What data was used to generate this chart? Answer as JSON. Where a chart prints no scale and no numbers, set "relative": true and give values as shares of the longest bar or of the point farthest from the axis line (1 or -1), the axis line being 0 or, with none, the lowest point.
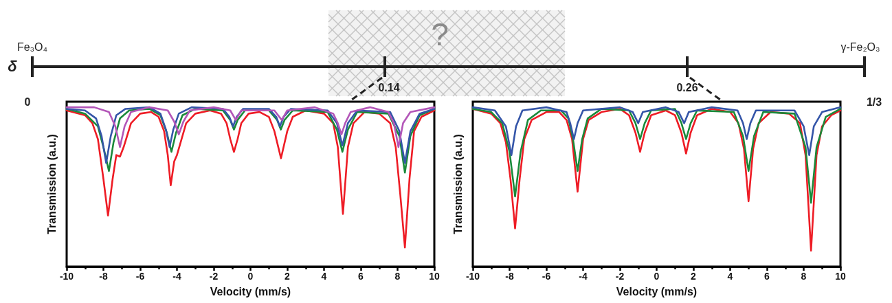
{
  "chart_data": [
    {
      "type": "other",
      "ylabel": "δ",
      "annotations": [
        "Fe₃O₄",
        "γ-Fe₂O₃",
        "0",
        "0.14",
        "0.26",
        "1/3",
        "?"
      ]
    },
    {
      "type": "line",
      "relative": true,
      "xlabel": "Velocity (mm/s)",
      "ylabel": "Transmission (a.u.)",
      "xlim": [
        -10,
        10
      ],
      "xticks": [
        -10,
        -8,
        -6,
        -4,
        -2,
        0,
        2,
        4,
        6,
        8,
        10
      ],
      "grid": false,
      "legend": false,
      "marker": "none",
      "line_style": "solid",
      "series": [
        {
          "color": "#ee1c25",
          "x": [
            -10,
            -9,
            -8.6,
            -8.3,
            -8.0,
            -7.75,
            -7.5,
            -7.3,
            -7.1,
            -6.9,
            -6.5,
            -6.0,
            -5.4,
            -5.0,
            -4.7,
            -4.5,
            -4.34,
            -4.15,
            -4.0,
            -3.8,
            -3.5,
            -3.0,
            -2.2,
            -1.6,
            -1.3,
            -1.1,
            -0.9,
            -0.7,
            -0.5,
            -0.1,
            0.5,
            1.0,
            1.3,
            1.66,
            2.0,
            2.3,
            3.0,
            4.0,
            4.5,
            4.75,
            5.03,
            5.3,
            5.6,
            6.2,
            7.0,
            7.6,
            7.9,
            8.15,
            8.4,
            8.65,
            8.9,
            9.3,
            10
          ],
          "values": [
            0.98,
            0.95,
            0.9,
            0.8,
            0.55,
            0.32,
            0.55,
            0.7,
            0.69,
            0.75,
            0.9,
            0.96,
            0.97,
            0.94,
            0.85,
            0.7,
            0.51,
            0.66,
            0.7,
            0.78,
            0.9,
            0.96,
            0.98,
            0.96,
            0.9,
            0.8,
            0.72,
            0.8,
            0.9,
            0.96,
            0.97,
            0.94,
            0.85,
            0.68,
            0.85,
            0.94,
            0.98,
            0.96,
            0.9,
            0.75,
            0.33,
            0.75,
            0.9,
            0.97,
            0.96,
            0.9,
            0.75,
            0.45,
            0.12,
            0.55,
            0.85,
            0.94,
            0.98
          ]
        },
        {
          "color": "#1a8a3a",
          "x": [
            -10,
            -9,
            -8.3,
            -8.0,
            -7.7,
            -7.45,
            -7.1,
            -6.6,
            -5.5,
            -4.9,
            -4.55,
            -4.3,
            -4.05,
            -3.7,
            -3.0,
            -1.5,
            -1.1,
            -0.9,
            -0.7,
            -0.3,
            1.0,
            1.45,
            1.65,
            1.85,
            2.3,
            4.2,
            4.7,
            5.0,
            5.3,
            5.8,
            7.5,
            8.1,
            8.4,
            8.7,
            9.2,
            10
          ],
          "values": [
            0.99,
            0.96,
            0.88,
            0.75,
            0.6,
            0.78,
            0.93,
            0.98,
            0.99,
            0.95,
            0.84,
            0.72,
            0.84,
            0.95,
            0.99,
            0.98,
            0.92,
            0.86,
            0.92,
            0.98,
            0.98,
            0.92,
            0.86,
            0.92,
            0.98,
            0.97,
            0.86,
            0.72,
            0.86,
            0.97,
            0.96,
            0.82,
            0.59,
            0.82,
            0.95,
            0.99
          ]
        },
        {
          "color": "#3455a8",
          "x": [
            -10,
            -9,
            -8.4,
            -8.1,
            -7.85,
            -7.6,
            -7.3,
            -6.8,
            -5.5,
            -4.9,
            -4.6,
            -4.4,
            -4.2,
            -3.9,
            -3.2,
            -1.5,
            -1.15,
            -0.95,
            -0.75,
            -0.4,
            1.0,
            1.4,
            1.6,
            1.8,
            2.2,
            4.2,
            4.7,
            5.0,
            5.3,
            5.8,
            7.6,
            8.1,
            8.4,
            8.7,
            9.2,
            10
          ],
          "values": [
            0.99,
            0.98,
            0.93,
            0.82,
            0.65,
            0.82,
            0.95,
            0.99,
            1.0,
            0.96,
            0.86,
            0.75,
            0.86,
            0.96,
            1.0,
            0.99,
            0.94,
            0.88,
            0.94,
            0.99,
            0.99,
            0.94,
            0.88,
            0.94,
            0.99,
            0.98,
            0.9,
            0.76,
            0.9,
            0.98,
            0.97,
            0.85,
            0.65,
            0.85,
            0.96,
            0.99
          ]
        },
        {
          "color": "#b356b8",
          "x": [
            -10,
            -8.5,
            -7.7,
            -7.35,
            -7.1,
            -6.85,
            -6.5,
            -5.5,
            -4.5,
            -4.15,
            -3.9,
            -3.65,
            -3.3,
            -2,
            -1.1,
            -0.8,
            -0.5,
            1.3,
            1.7,
            2.0,
            3.5,
            4.5,
            4.75,
            4.95,
            5.15,
            5.45,
            6.5,
            7.5,
            7.8,
            8.05,
            8.3,
            8.7,
            10
          ],
          "values": [
            1.0,
            1.0,
            0.97,
            0.88,
            0.75,
            0.88,
            0.97,
            1.0,
            0.98,
            0.91,
            0.83,
            0.91,
            0.98,
            1.0,
            0.98,
            0.92,
            0.98,
            0.98,
            0.92,
            0.98,
            1.0,
            0.96,
            0.9,
            0.83,
            0.9,
            0.97,
            1.0,
            0.97,
            0.9,
            0.75,
            0.9,
            0.97,
            1.0
          ]
        }
      ]
    },
    {
      "type": "line",
      "relative": true,
      "xlabel": "Velocity (mm/s)",
      "ylabel": "Transmission (a.u.)",
      "xlim": [
        -10,
        10
      ],
      "xticks": [
        -10,
        -8,
        -6,
        -4,
        -2,
        0,
        2,
        4,
        6,
        8,
        10
      ],
      "grid": false,
      "legend": false,
      "marker": "none",
      "line_style": "solid",
      "series": [
        {
          "color": "#ee1c25",
          "x": [
            -10,
            -9,
            -8.5,
            -8.2,
            -7.95,
            -7.7,
            -7.45,
            -7.2,
            -6.8,
            -6.0,
            -5.3,
            -4.9,
            -4.6,
            -4.3,
            -4.0,
            -3.7,
            -3.0,
            -2.0,
            -1.5,
            -1.15,
            -0.9,
            -0.65,
            -0.3,
            0.5,
            1.0,
            1.35,
            1.6,
            1.85,
            2.2,
            3.0,
            4.0,
            4.45,
            4.75,
            5.0,
            5.25,
            5.55,
            6.2,
            7.2,
            7.8,
            8.1,
            8.4,
            8.7,
            9.0,
            9.5,
            10
          ],
          "values": [
            0.99,
            0.96,
            0.9,
            0.78,
            0.55,
            0.24,
            0.55,
            0.8,
            0.92,
            0.97,
            0.97,
            0.92,
            0.8,
            0.47,
            0.8,
            0.92,
            0.97,
            0.99,
            0.95,
            0.84,
            0.72,
            0.84,
            0.95,
            0.98,
            0.95,
            0.84,
            0.71,
            0.84,
            0.95,
            0.99,
            0.97,
            0.9,
            0.74,
            0.41,
            0.74,
            0.9,
            0.97,
            0.96,
            0.9,
            0.7,
            0.1,
            0.7,
            0.88,
            0.95,
            0.98
          ]
        },
        {
          "color": "#1a8a3a",
          "x": [
            -10,
            -9,
            -8.4,
            -8.0,
            -7.7,
            -7.4,
            -7.0,
            -6.3,
            -5.2,
            -4.8,
            -4.55,
            -4.3,
            -4.05,
            -3.75,
            -3.0,
            -1.5,
            -1.15,
            -0.9,
            -0.65,
            -0.3,
            1.0,
            1.35,
            1.6,
            1.85,
            2.2,
            4.2,
            4.7,
            5.0,
            5.3,
            5.8,
            7.5,
            8.1,
            8.4,
            8.7,
            9.2,
            10
          ],
          "values": [
            0.99,
            0.97,
            0.9,
            0.72,
            0.44,
            0.72,
            0.92,
            0.98,
            0.98,
            0.93,
            0.8,
            0.6,
            0.8,
            0.93,
            0.99,
            0.98,
            0.9,
            0.8,
            0.9,
            0.98,
            0.99,
            0.9,
            0.8,
            0.9,
            0.98,
            0.97,
            0.82,
            0.6,
            0.82,
            0.97,
            0.96,
            0.75,
            0.4,
            0.75,
            0.94,
            0.99
          ]
        },
        {
          "color": "#3455a8",
          "x": [
            -10,
            -8.8,
            -8.2,
            -7.9,
            -7.65,
            -7.3,
            -6,
            -4.9,
            -4.7,
            -4.5,
            -4.3,
            -4.0,
            -2.0,
            -1.3,
            -1.0,
            -0.75,
            0.5,
            1.2,
            1.5,
            1.75,
            3.0,
            4.4,
            4.7,
            4.9,
            5.1,
            5.4,
            7.5,
            8.0,
            8.3,
            8.55,
            9.0,
            10
          ],
          "values": [
            1.0,
            0.98,
            0.88,
            0.7,
            0.88,
            0.98,
            1.0,
            0.97,
            0.9,
            0.8,
            0.9,
            0.98,
            1.0,
            0.97,
            0.9,
            0.97,
            1.0,
            0.97,
            0.9,
            0.97,
            1.0,
            0.98,
            0.9,
            0.8,
            0.9,
            0.98,
            0.98,
            0.88,
            0.7,
            0.88,
            0.97,
            1.0
          ]
        }
      ]
    }
  ]
}
